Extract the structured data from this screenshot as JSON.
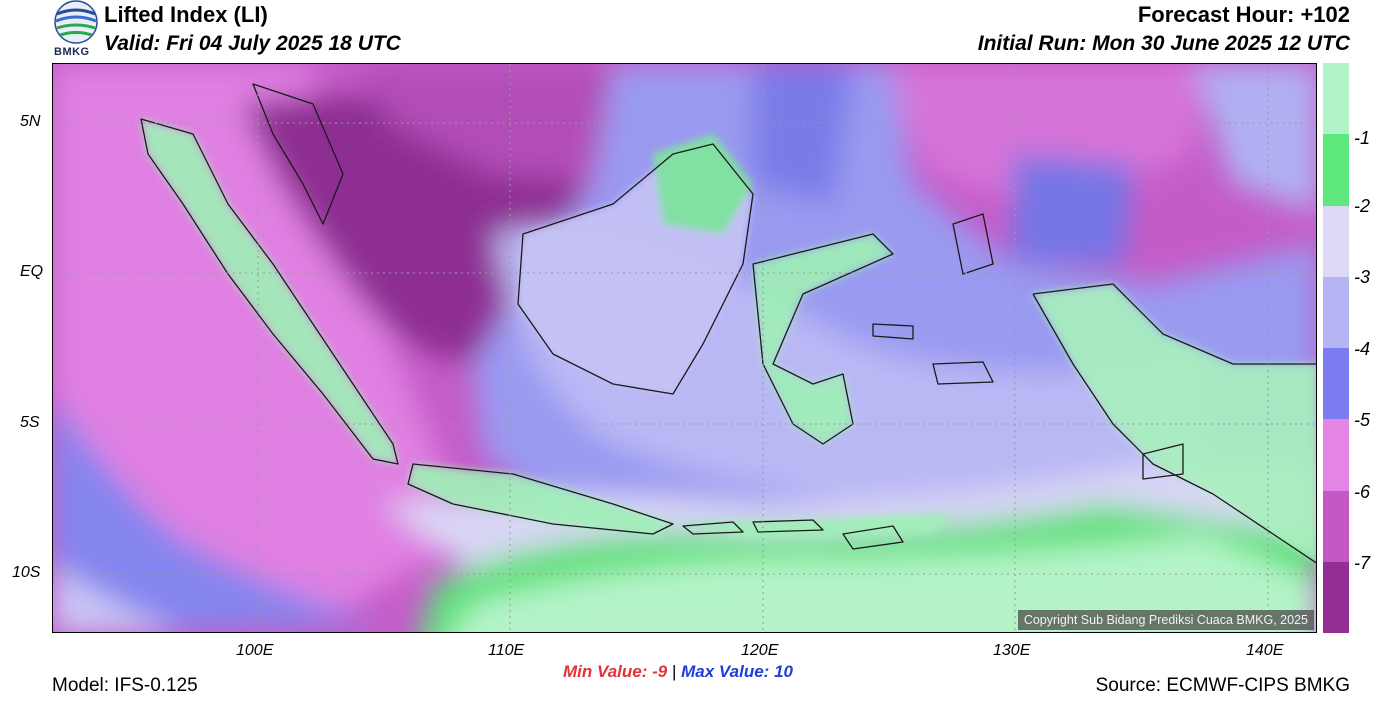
{
  "header": {
    "title": "Lifted Index (LI)",
    "valid": "Valid: Fri 04 July 2025 18 UTC",
    "forecast_hour": "Forecast Hour: +102",
    "initial_run": "Initial Run: Mon 30 June 2025 12 UTC",
    "logo_text": "BMKG"
  },
  "map": {
    "lat_ticks": [
      "5N",
      "EQ",
      "5S",
      "10S"
    ],
    "lon_ticks": [
      "100E",
      "110E",
      "120E",
      "130E",
      "140E"
    ],
    "copyright": "Copyright Sub Bidang Prediksi Cuaca BMKG, 2025"
  },
  "colorbar": {
    "labels": [
      "-1",
      "-2",
      "-3",
      "-4",
      "-5",
      "-6",
      "-7"
    ],
    "colors": [
      "#b3f5c9",
      "#5ee87c",
      "#dcd8f6",
      "#b5b4f4",
      "#7c7cf0",
      "#e484e4",
      "#c457c4",
      "#932f93"
    ]
  },
  "stats": {
    "min_label": "Min Value:",
    "min_value": "-9",
    "separator": "|",
    "max_label": "Max Value:",
    "max_value": "10"
  },
  "footer": {
    "model": "Model: IFS-0.125",
    "source": "Source: ECMWF-CIPS BMKG"
  }
}
